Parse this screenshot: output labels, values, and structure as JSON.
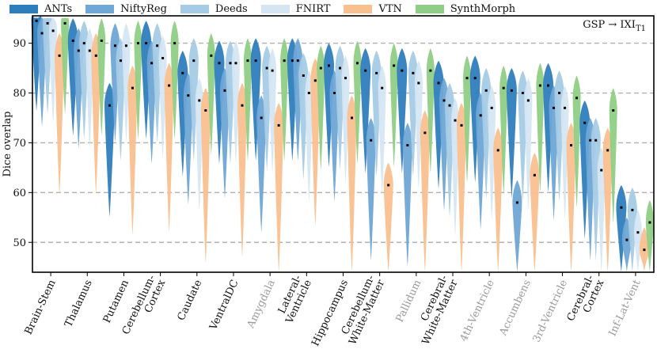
{
  "chart_data": {
    "type": "violin",
    "title": "",
    "annotation": "GSP → IXI",
    "annotation_sub": "T1",
    "ylabel": "Dice overlap",
    "xlabel": "",
    "ylim": [
      44,
      95.5
    ],
    "yticks": [
      50,
      60,
      70,
      80,
      90
    ],
    "grid": "horizontal dashed",
    "legend_position": "top",
    "series": [
      {
        "name": "ANTs",
        "color": "#2f7ebc"
      },
      {
        "name": "NiftyReg",
        "color": "#6fa7d6"
      },
      {
        "name": "Deeds",
        "color": "#a6cbe6"
      },
      {
        "name": "FNIRT",
        "color": "#d5e6f2"
      },
      {
        "name": "VTN",
        "color": "#f9c08f"
      },
      {
        "name": "SynthMorph",
        "color": "#8fcf85"
      }
    ],
    "categories": [
      {
        "label": "Brain-Stem",
        "muted": false,
        "medians": [
          94.5,
          92.0,
          94.0,
          92.5,
          87.5,
          94.0
        ]
      },
      {
        "label": "Thalamus",
        "muted": false,
        "medians": [
          90.5,
          88.5,
          90.0,
          88.5,
          87.5,
          90.5
        ]
      },
      {
        "label": "Putamen",
        "muted": false,
        "medians": [
          77.5,
          89.5,
          86.5,
          89.5,
          81.0,
          90.0
        ]
      },
      {
        "label": "Cerebellum-\nCortex",
        "muted": false,
        "medians": [
          90.0,
          86.0,
          89.5,
          87.0,
          81.5,
          90.0
        ]
      },
      {
        "label": "Caudate",
        "muted": false,
        "medians": [
          84.0,
          79.5,
          86.5,
          78.5,
          76.5,
          87.5
        ]
      },
      {
        "label": "VentralDC",
        "muted": false,
        "medians": [
          86.0,
          80.5,
          86.0,
          86.0,
          77.5,
          86.5
        ]
      },
      {
        "label": "Amygdala",
        "muted": true,
        "medians": [
          86.5,
          75.0,
          85.0,
          84.5,
          73.5,
          86.5
        ]
      },
      {
        "label": "Lateral-\nVentricle",
        "muted": false,
        "medians": [
          86.5,
          86.5,
          83.5,
          80.0,
          82.5,
          85.0
        ]
      },
      {
        "label": "Hippocampus",
        "muted": false,
        "medians": [
          85.5,
          80.0,
          85.0,
          83.0,
          75.0,
          86.0
        ]
      },
      {
        "label": "Cerebellum-\nWhite-Matter",
        "muted": false,
        "medians": [
          84.5,
          70.5,
          84.0,
          81.0,
          61.5,
          85.5
        ]
      },
      {
        "label": "Pallidum",
        "muted": true,
        "medians": [
          84.5,
          69.5,
          84.0,
          82.0,
          72.0,
          84.5
        ]
      },
      {
        "label": "Cerebral-\nWhite-Matter",
        "muted": false,
        "medians": [
          82.0,
          78.5,
          77.5,
          74.5,
          73.5,
          83.0
        ]
      },
      {
        "label": "4th-Ventricle",
        "muted": true,
        "medians": [
          83.0,
          75.5,
          80.5,
          77.0,
          68.5,
          81.0
        ]
      },
      {
        "label": "Accumbens",
        "muted": true,
        "medians": [
          80.5,
          58.0,
          80.0,
          78.5,
          63.5,
          81.5
        ]
      },
      {
        "label": "3rd-Ventricle",
        "muted": true,
        "medians": [
          81.5,
          77.0,
          80.0,
          77.0,
          69.5,
          79.0
        ]
      },
      {
        "label": "Cerebral-\nCortex",
        "muted": false,
        "medians": [
          74.0,
          70.5,
          70.5,
          64.5,
          68.5,
          76.5
        ]
      },
      {
        "label": "Inf-Lat-Vent",
        "muted": true,
        "medians": [
          57.0,
          50.5,
          56.5,
          52.0,
          48.5,
          54.0
        ]
      }
    ]
  }
}
